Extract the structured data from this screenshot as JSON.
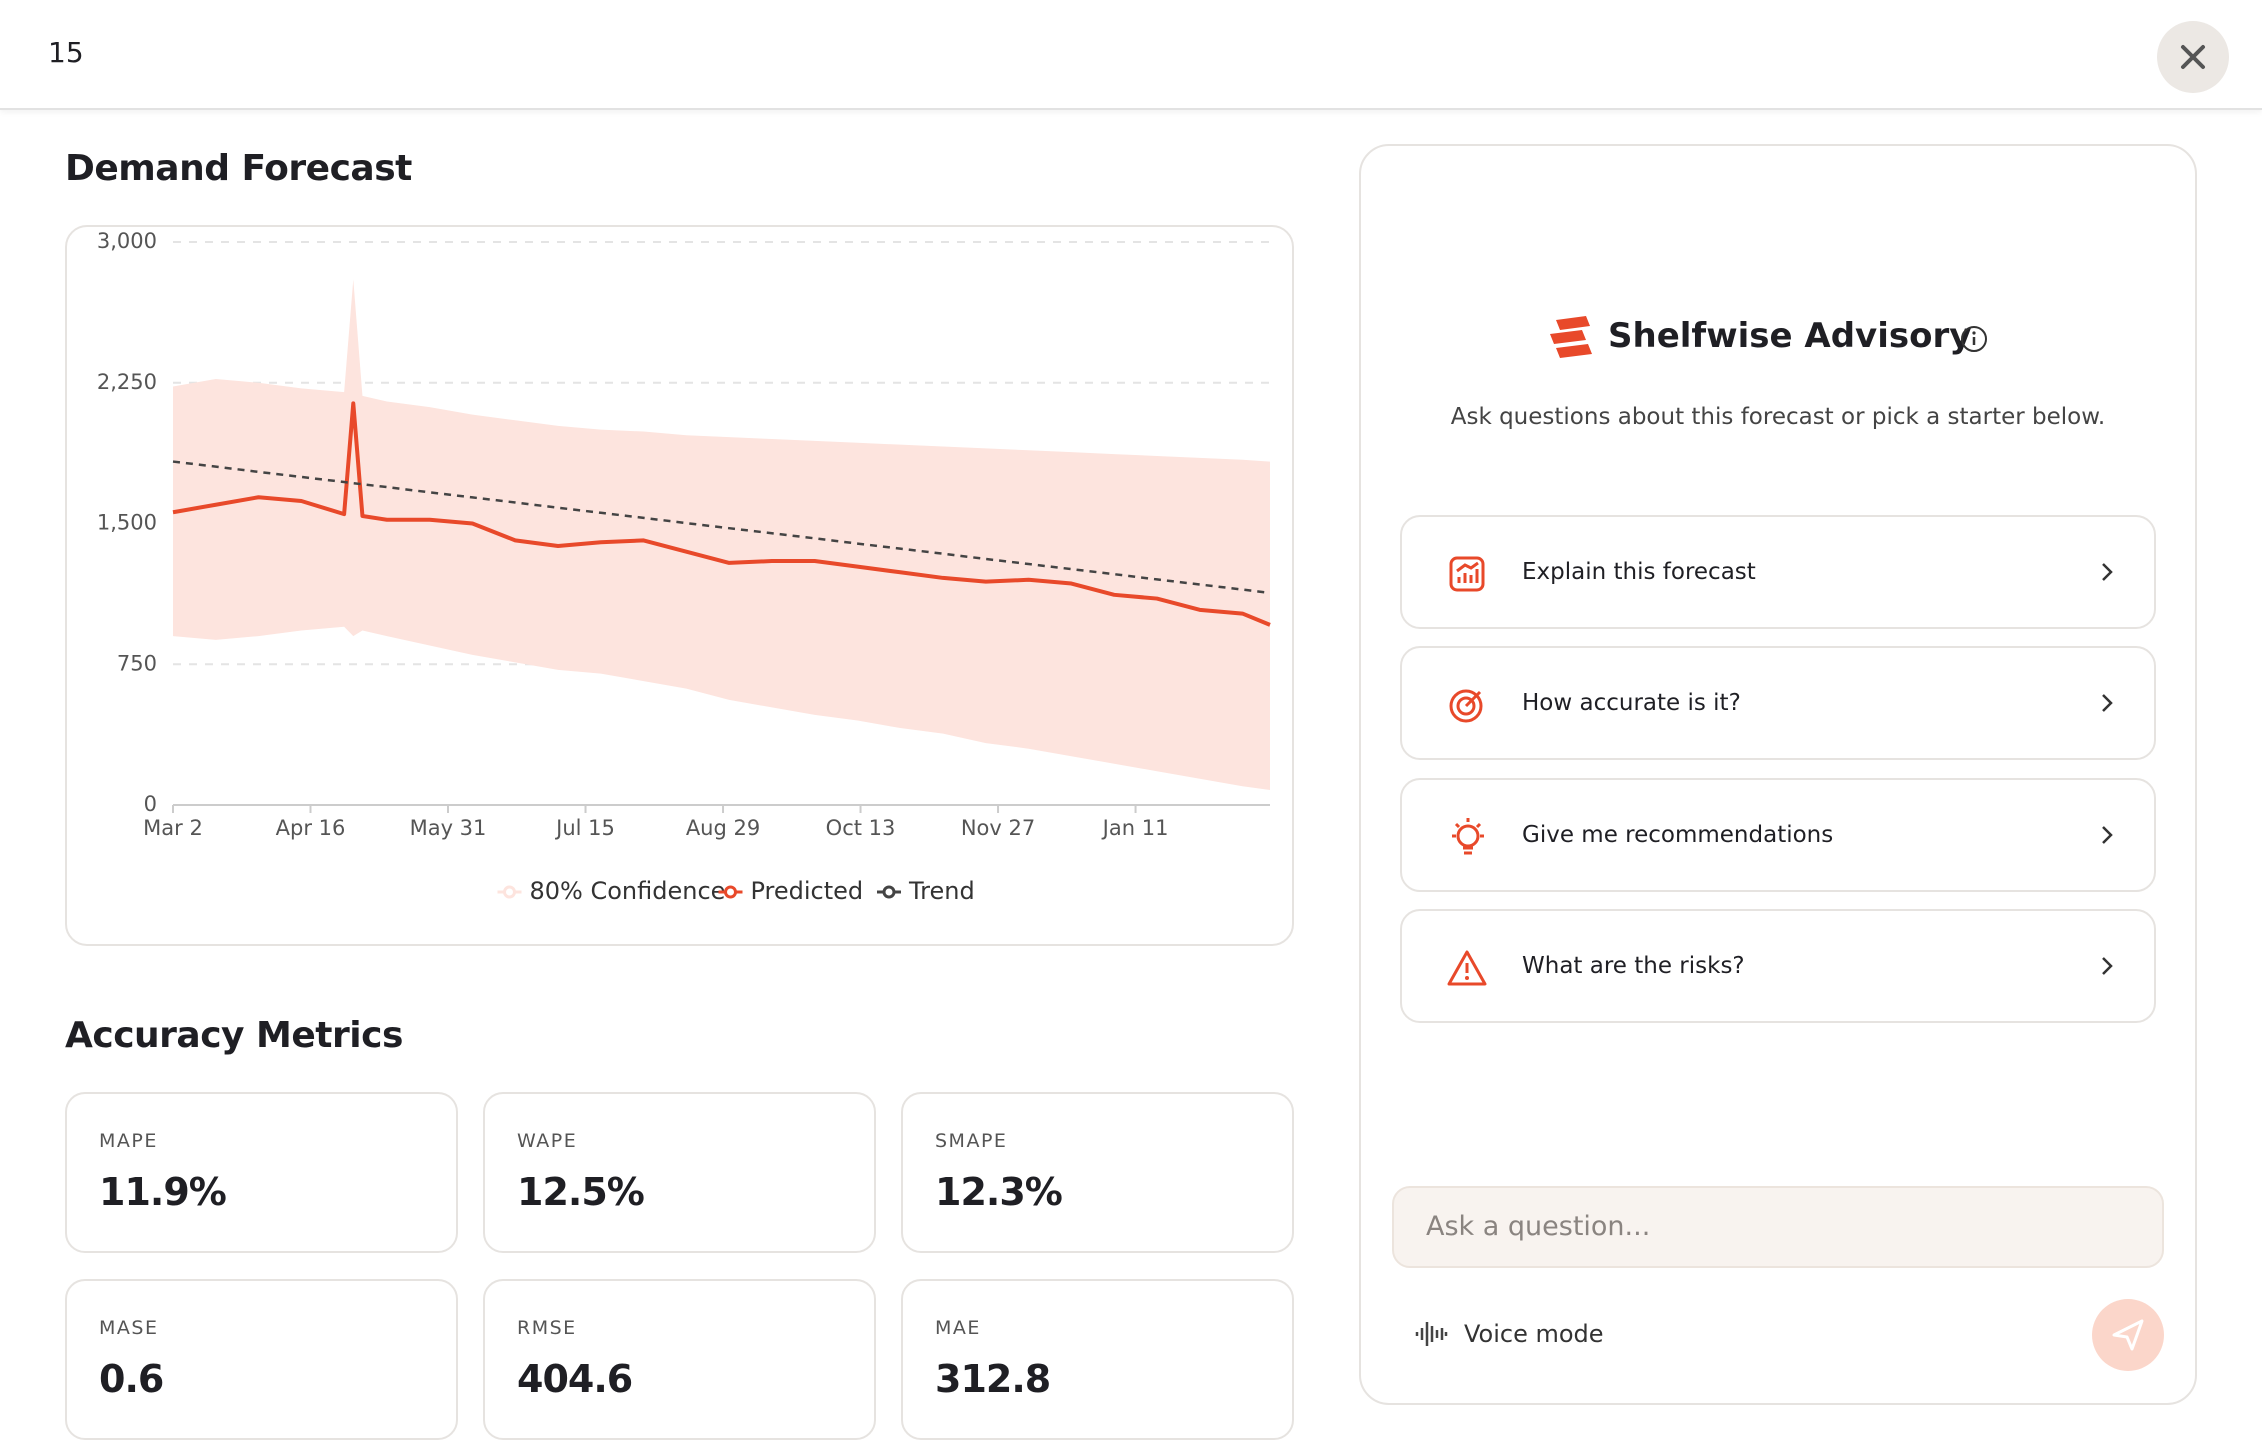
{
  "header": {
    "title": "15"
  },
  "forecast": {
    "title": "Demand Forecast"
  },
  "chart_data": {
    "type": "line",
    "grid": true,
    "x": [
      0,
      14,
      28,
      42,
      56,
      59,
      62,
      70,
      84,
      98,
      112,
      126,
      140,
      154,
      168,
      182,
      196,
      210,
      224,
      238,
      252,
      266,
      280,
      294,
      308,
      322,
      336,
      350,
      359
    ],
    "xlim": [
      0,
      359
    ],
    "xticks": [
      {
        "value": 0,
        "label": "Mar 2"
      },
      {
        "value": 45,
        "label": "Apr 16"
      },
      {
        "value": 90,
        "label": "May 31"
      },
      {
        "value": 135,
        "label": "Jul 15"
      },
      {
        "value": 180,
        "label": "Aug 29"
      },
      {
        "value": 225,
        "label": "Oct 13"
      },
      {
        "value": 270,
        "label": "Nov 27"
      },
      {
        "value": 315,
        "label": "Jan 11"
      }
    ],
    "ylim": [
      0,
      3000
    ],
    "yticks": [
      0,
      750,
      {
        "value": 1500,
        "label": "1,500"
      },
      {
        "value": 2250,
        "label": "2,250"
      },
      {
        "value": 3000,
        "label": "3,000"
      }
    ],
    "series": [
      {
        "name": "80% Confidence",
        "color": "#fde4de",
        "upper": [
          2230,
          2270,
          2250,
          2220,
          2200,
          2800,
          2180,
          2150,
          2120,
          2080,
          2050,
          2020,
          2000,
          1990,
          1970,
          1960,
          1950,
          1940,
          1930,
          1920,
          1910,
          1900,
          1890,
          1880,
          1870,
          1860,
          1850,
          1840,
          1830
        ],
        "lower": [
          900,
          880,
          900,
          930,
          950,
          900,
          930,
          900,
          850,
          800,
          760,
          720,
          700,
          660,
          620,
          560,
          520,
          480,
          450,
          410,
          380,
          330,
          300,
          260,
          220,
          180,
          140,
          100,
          80
        ]
      },
      {
        "name": "Predicted",
        "color": "#e8492a",
        "values": [
          1560,
          1600,
          1640,
          1620,
          1550,
          2140,
          1540,
          1520,
          1520,
          1500,
          1410,
          1380,
          1400,
          1410,
          1350,
          1290,
          1300,
          1300,
          1270,
          1240,
          1210,
          1190,
          1200,
          1180,
          1120,
          1100,
          1040,
          1020,
          960
        ]
      },
      {
        "name": "Trend",
        "color": "#444444",
        "dashed": true,
        "values": [
          1830,
          1803,
          1775,
          1748,
          1721,
          1715,
          1709,
          1694,
          1666,
          1639,
          1612,
          1584,
          1557,
          1530,
          1502,
          1475,
          1448,
          1421,
          1393,
          1366,
          1339,
          1311,
          1284,
          1257,
          1230,
          1202,
          1175,
          1148,
          1130
        ]
      }
    ]
  },
  "metrics": {
    "title": "Accuracy Metrics",
    "items": [
      {
        "label": "MAPE",
        "value": "11.9%"
      },
      {
        "label": "WAPE",
        "value": "12.5%"
      },
      {
        "label": "SMAPE",
        "value": "12.3%"
      },
      {
        "label": "MASE",
        "value": "0.6"
      },
      {
        "label": "RMSE",
        "value": "404.6"
      },
      {
        "label": "MAE",
        "value": "312.8"
      }
    ]
  },
  "advisory": {
    "title": "Shelfwise Advisory",
    "subtitle": "Ask questions about this forecast or pick a starter below.",
    "starters": [
      "Explain this forecast",
      "How accurate is it?",
      "Give me recommendations",
      "What are the risks?"
    ],
    "input_placeholder": "Ask a question...",
    "voice_mode": "Voice mode"
  }
}
